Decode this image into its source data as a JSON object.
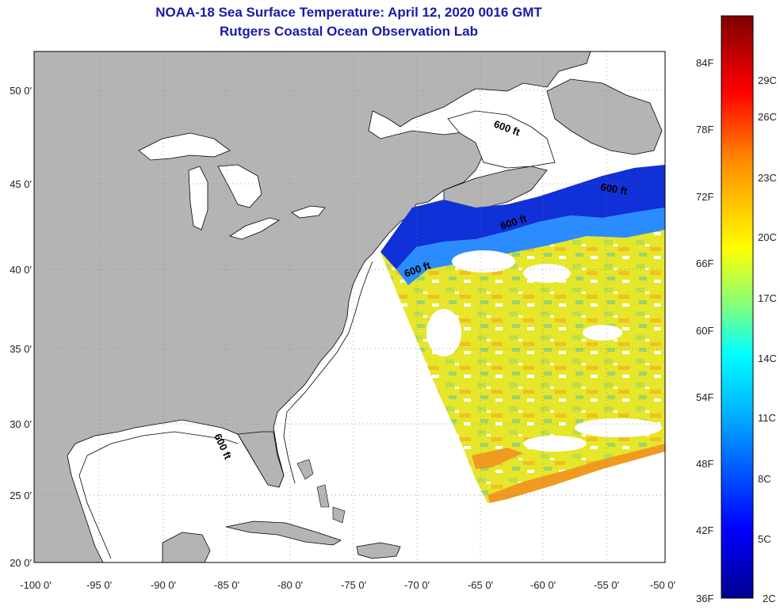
{
  "title": {
    "line1": "NOAA-18 Sea Surface Temperature:  April 12, 2020 0016 GMT",
    "line2": "Rutgers Coastal Ocean Observation Lab"
  },
  "lat_labels": [
    "50 0'",
    "45 0'",
    "40 0'",
    "35 0'",
    "30 0'",
    "25 0'",
    "20 0'"
  ],
  "lon_labels": [
    "-100 0'",
    "-95 0'",
    "-90 0'",
    "-85 0'",
    "-80 0'",
    "-75 0'",
    "-70 0'",
    "-65 0'",
    "-60 0'",
    "-55 0'",
    "-50 0'"
  ],
  "contour_labels": [
    "600 ft",
    "600 ft",
    "600 ft",
    "600 ft",
    "600 ft"
  ],
  "colorbar": {
    "f_labels": [
      "84F",
      "78F",
      "72F",
      "66F",
      "60F",
      "54F",
      "48F",
      "42F",
      "36F"
    ],
    "c_labels": [
      "29C",
      "26C",
      "23C",
      "20C",
      "17C",
      "14C",
      "11C",
      "8C",
      "5C",
      "2C"
    ]
  },
  "colors": {
    "title": "#1a1aa8",
    "land": "#b4b4b4",
    "grid": "#7f7f7f",
    "cloud": "#ffffff"
  }
}
